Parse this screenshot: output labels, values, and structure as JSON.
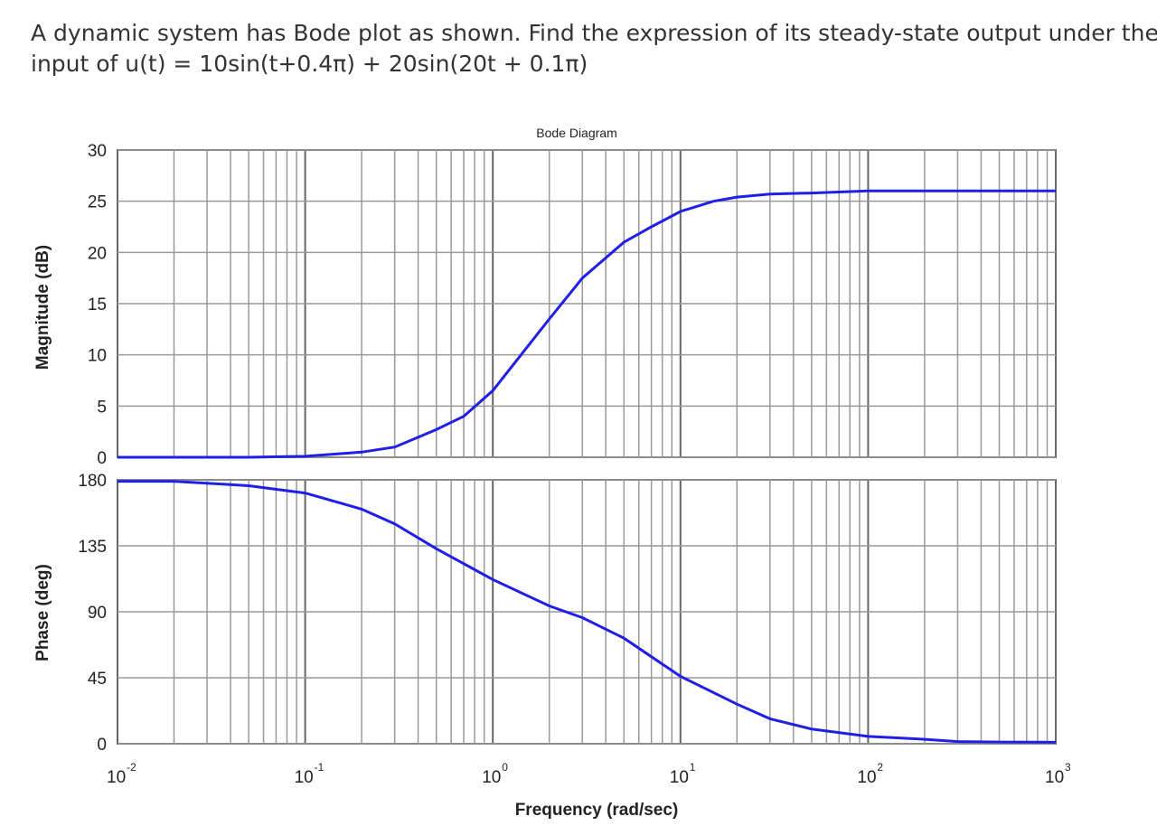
{
  "question": {
    "line1": "A dynamic system has Bode plot as shown. Find the expression of its steady-state output under the",
    "line2": "input of u(t) = 10sin(t+0.4π) + 20sin(20t + 0.1π)"
  },
  "chart_data": {
    "type": "line",
    "title": "Bode Diagram",
    "xlabel": "Frequency (rad/sec)",
    "x_scale": "log",
    "xlim": [
      0.01,
      1000
    ],
    "x_ticks": [
      {
        "base": "10",
        "exp": "-2"
      },
      {
        "base": "10",
        "exp": "-1"
      },
      {
        "base": "10",
        "exp": "0"
      },
      {
        "base": "10",
        "exp": "1"
      },
      {
        "base": "10",
        "exp": "2"
      },
      {
        "base": "10",
        "exp": "3"
      }
    ],
    "grid": true,
    "line_color": "#1f1fe8",
    "magnitude": {
      "ylabel": "Magnitude (dB)",
      "ylim": [
        0,
        30
      ],
      "y_ticks": [
        "0",
        "5",
        "10",
        "15",
        "20",
        "25",
        "30"
      ],
      "x": [
        0.01,
        0.05,
        0.1,
        0.2,
        0.3,
        0.5,
        0.7,
        1,
        2,
        3,
        5,
        7,
        10,
        15,
        20,
        30,
        50,
        100,
        1000
      ],
      "y": [
        0,
        0,
        0.1,
        0.5,
        1,
        2.7,
        4,
        6.5,
        13.5,
        17.5,
        21,
        22.5,
        24,
        25,
        25.4,
        25.7,
        25.8,
        26,
        26
      ]
    },
    "phase": {
      "ylabel": "Phase (deg)",
      "ylim": [
        0,
        180
      ],
      "y_ticks": [
        "0",
        "45",
        "90",
        "135",
        "180"
      ],
      "x": [
        0.01,
        0.02,
        0.05,
        0.1,
        0.2,
        0.3,
        0.5,
        1,
        2,
        3,
        5,
        10,
        20,
        30,
        50,
        100,
        200,
        300,
        500,
        1000
      ],
      "y": [
        179,
        179,
        176,
        171,
        160,
        150,
        133,
        112,
        94,
        86,
        72,
        46,
        27,
        17,
        10,
        5,
        3,
        1.5,
        1.2,
        1
      ]
    }
  }
}
